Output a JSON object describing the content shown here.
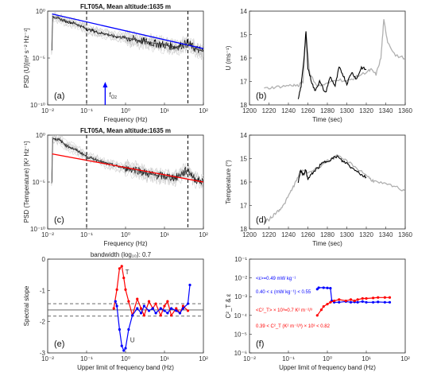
{
  "chart_data": [
    {
      "panel": "(a)",
      "type": "line",
      "title": "FLT05A, Mean altitude:1635 m",
      "xlabel": "Frequency (Hz)",
      "ylabel": "PSD (U)[m² s⁻² Hz⁻¹]",
      "xscale": "log",
      "yscale": "log",
      "xlim": [
        0.01,
        100
      ],
      "ylim": [
        1e-10,
        1
      ],
      "xticks": [
        "10⁻²",
        "10⁻¹",
        "10⁰",
        "10¹",
        "10²"
      ],
      "yticks": [
        "10⁰",
        "10⁻⁵",
        "10⁻¹⁰"
      ],
      "vlines": [
        0.1,
        40
      ],
      "annotation": {
        "text": "f",
        "subscript": "Oz",
        "x": 0.3,
        "color": "#0000ff"
      },
      "fit_line": {
        "color": "#0000ff",
        "x": [
          0.013,
          100
        ],
        "y": [
          0.5,
          0.0001
        ]
      },
      "spectrum": {
        "color": "#000000",
        "x": [
          0.013,
          0.02,
          0.03,
          0.05,
          0.08,
          0.1,
          0.15,
          0.2,
          0.3,
          0.5,
          1,
          2,
          3,
          5,
          10,
          20,
          40,
          60,
          100
        ],
        "y": [
          0.3,
          0.15,
          0.08,
          0.05,
          0.02,
          0.012,
          0.008,
          0.005,
          0.004,
          0.002,
          0.0015,
          0.0008,
          0.0006,
          0.0004,
          0.00025,
          0.00015,
          0.0004,
          0.0001,
          5e-05
        ]
      }
    },
    {
      "panel": "(b)",
      "type": "line",
      "xlabel": "Time (sec)",
      "ylabel": "U (ms⁻¹)",
      "xlim": [
        1200,
        1360
      ],
      "ylim": [
        14,
        18
      ],
      "xticks": [
        "1200",
        "1220",
        "1240",
        "1260",
        "1280",
        "1300",
        "1320",
        "1340",
        "1360"
      ],
      "yticks": [
        "14",
        "15",
        "16",
        "17",
        "18"
      ],
      "series": [
        {
          "color": "#b0b0b0",
          "x": [
            1215,
            1225,
            1235,
            1245,
            1250,
            1255,
            1258,
            1262,
            1270,
            1280,
            1290,
            1300,
            1310,
            1320,
            1325,
            1330,
            1335,
            1338,
            1342,
            1350,
            1360
          ],
          "y": [
            14.7,
            14.75,
            14.8,
            14.85,
            14.8,
            15.0,
            17.1,
            15.3,
            14.8,
            14.9,
            15.1,
            15.0,
            15.2,
            15.4,
            15.5,
            15.3,
            16.0,
            17.6,
            16.7,
            16.1,
            16.0
          ]
        },
        {
          "color": "#000000",
          "x": [
            1250,
            1253,
            1256,
            1258,
            1260,
            1263,
            1267,
            1272,
            1278,
            1283,
            1288,
            1292,
            1296,
            1300,
            1305,
            1310,
            1315,
            1320
          ],
          "y": [
            14.2,
            14.8,
            16.0,
            17.1,
            15.6,
            15.1,
            14.6,
            15.0,
            14.5,
            15.2,
            14.8,
            15.6,
            15.3,
            14.9,
            15.4,
            15.1,
            15.6,
            15.5
          ]
        }
      ]
    },
    {
      "panel": "(c)",
      "type": "line",
      "title": "FLT05A, Mean altitude:1635 m",
      "xlabel": "Frequency (Hz)",
      "ylabel": "PSD (Temperature) [K² Hz⁻¹]",
      "xscale": "log",
      "yscale": "log",
      "xlim": [
        0.01,
        100
      ],
      "ylim": [
        1e-10,
        1
      ],
      "xticks": [
        "10⁻²",
        "10⁻¹",
        "10⁰",
        "10¹",
        "10²"
      ],
      "yticks": [
        "10⁰",
        "10⁻⁵",
        "10⁻¹⁰"
      ],
      "vlines": [
        0.1,
        40
      ],
      "fit_line": {
        "color": "#ff0000",
        "x": [
          0.013,
          100
        ],
        "y": [
          0.01,
          1e-05
        ]
      },
      "spectrum": {
        "color": "#000000",
        "x": [
          0.013,
          0.02,
          0.03,
          0.05,
          0.08,
          0.1,
          0.15,
          0.2,
          0.3,
          0.5,
          1,
          2,
          3,
          5,
          10,
          20,
          40,
          60,
          100
        ],
        "y": [
          0.5,
          0.3,
          0.08,
          0.03,
          0.01,
          0.005,
          0.003,
          0.002,
          0.001,
          0.0006,
          0.0003,
          0.0002,
          0.0001,
          6e-05,
          4e-05,
          3e-05,
          0.0002,
          2e-05,
          1e-05
        ]
      }
    },
    {
      "panel": "(d)",
      "type": "line",
      "xlabel": "Time (sec)",
      "ylabel": "Temperature (°)",
      "xlim": [
        1200,
        1360
      ],
      "ylim": [
        14,
        18
      ],
      "xticks": [
        "1200",
        "1220",
        "1240",
        "1260",
        "1280",
        "1300",
        "1320",
        "1340",
        "1360"
      ],
      "yticks": [
        "14",
        "15",
        "16",
        "17",
        "18"
      ],
      "series": [
        {
          "color": "#b0b0b0",
          "x": [
            1215,
            1220,
            1225,
            1230,
            1235,
            1240,
            1245,
            1250,
            1255,
            1260,
            1270,
            1280,
            1290,
            1300,
            1310,
            1320,
            1325,
            1330,
            1340,
            1350,
            1360
          ],
          "y": [
            14.3,
            14.4,
            14.6,
            14.8,
            15.0,
            15.4,
            15.8,
            16.2,
            16.5,
            16.4,
            16.6,
            16.9,
            17.1,
            16.9,
            16.6,
            16.3,
            16.1,
            16.0,
            15.9,
            15.8,
            15.6
          ]
        },
        {
          "color": "#000000",
          "x": [
            1250,
            1252,
            1255,
            1258,
            1260,
            1265,
            1270,
            1275,
            1280,
            1285,
            1290,
            1295,
            1300,
            1305,
            1310,
            1315,
            1320
          ],
          "y": [
            16.0,
            16.5,
            16.3,
            16.5,
            16.1,
            16.4,
            16.6,
            16.8,
            16.9,
            17.0,
            17.1,
            16.9,
            16.8,
            16.6,
            16.5,
            16.3,
            16.2
          ]
        }
      ]
    },
    {
      "panel": "(e)",
      "type": "line",
      "title": "bandwidth (log₁₀): 0.7",
      "xlabel": "Upper limit of frequency band (Hz)",
      "ylabel": "Spectral slope",
      "xscale": "log",
      "xlim": [
        0.01,
        100
      ],
      "ylim": [
        -3.5,
        0.5
      ],
      "xticks": [
        "10⁻²",
        "10⁻¹",
        "10⁰",
        "10¹",
        "10²"
      ],
      "yticks": [
        "0",
        "-1",
        "-2",
        "-3"
      ],
      "hlines": [
        {
          "y": -1.667,
          "style": "solid"
        },
        {
          "y": -1.4,
          "style": "dashed"
        },
        {
          "y": -1.93,
          "style": "dashed"
        }
      ],
      "series": [
        {
          "name": "T",
          "color": "#ff0000",
          "x": [
            0.5,
            0.6,
            0.7,
            0.8,
            0.9,
            1.0,
            1.2,
            1.5,
            2,
            2.5,
            3,
            4,
            5,
            6,
            8,
            10,
            12,
            15,
            20,
            25,
            30,
            40
          ],
          "y": [
            -1.6,
            -0.8,
            0.1,
            0.2,
            -0.3,
            -0.8,
            -1.3,
            -1.9,
            -1.2,
            -1.6,
            -1.9,
            -1.3,
            -1.6,
            -1.4,
            -1.9,
            -1.5,
            -1.3,
            -1.9,
            -1.6,
            -1.8,
            -1.5,
            -1.7
          ]
        },
        {
          "name": "U",
          "color": "#0000ff",
          "x": [
            0.55,
            0.6,
            0.7,
            0.8,
            0.9,
            1.0,
            1.2,
            1.5,
            2,
            2.5,
            3,
            4,
            5,
            6,
            8,
            10,
            12,
            15,
            20,
            25,
            30,
            40,
            45
          ],
          "y": [
            -1.3,
            -1.5,
            -2.5,
            -3.2,
            -3.4,
            -3.3,
            -2.5,
            -1.9,
            -1.6,
            -1.8,
            -1.5,
            -1.7,
            -1.6,
            -1.8,
            -1.6,
            -1.7,
            -1.8,
            -1.6,
            -1.7,
            -1.8,
            -1.6,
            -1.4,
            -0.6
          ]
        }
      ],
      "series_markers": "dots"
    },
    {
      "panel": "(f)",
      "type": "line",
      "xlabel": "Upper limit of frequency band (Hz)",
      "ylabel": "C²_T & ε",
      "xscale": "log",
      "yscale": "log",
      "xlim": [
        0.01,
        100
      ],
      "ylim": [
        1e-06,
        0.1
      ],
      "xticks": [
        "10⁻²",
        "10⁻¹",
        "10⁰",
        "10¹",
        "10²"
      ],
      "yticks": [
        "10⁻¹",
        "10⁻²",
        "10⁻³",
        "10⁻⁴",
        "10⁻⁵",
        "10⁻⁶"
      ],
      "annotations": [
        {
          "text": "<ε>=0.49 mW kg⁻¹",
          "color": "#0000ff"
        },
        {
          "text": "0.40 < ε (mW kg⁻¹) < 0.55",
          "color": "#0000ff"
        },
        {
          "text": "<C²_T> × 10³=0.7 K² m⁻²/³",
          "color": "#ff0000"
        },
        {
          "text": "0.39 < C²_T (K² m⁻²/³) × 10³ < 0.82",
          "color": "#ff0000"
        }
      ],
      "series": [
        {
          "name": "ε",
          "color": "#0000ff",
          "x": [
            0.55,
            0.6,
            0.8,
            1.0,
            1.2,
            1.3,
            1.5,
            2,
            3,
            4,
            5,
            6,
            8,
            10,
            15,
            20,
            30,
            40
          ],
          "y": [
            0.0025,
            0.003,
            0.003,
            0.0029,
            0.0028,
            0.0006,
            0.0005,
            0.0005,
            0.00055,
            0.0005,
            0.00052,
            0.0005,
            0.00055,
            0.0005,
            0.0005,
            0.00052,
            0.0005,
            0.0005
          ]
        },
        {
          "name": "C²_T",
          "color": "#ff0000",
          "x": [
            0.55,
            0.7,
            0.8,
            1.0,
            1.2,
            1.5,
            2,
            3,
            4,
            5,
            6,
            8,
            10,
            15,
            20,
            30,
            40
          ],
          "y": [
            0.0001,
            0.0002,
            0.0003,
            0.0004,
            0.0005,
            0.0006,
            0.0007,
            0.0006,
            0.0007,
            0.0006,
            0.0007,
            0.0008,
            0.0008,
            0.00085,
            0.0009,
            0.0009,
            0.0009
          ]
        }
      ]
    }
  ]
}
